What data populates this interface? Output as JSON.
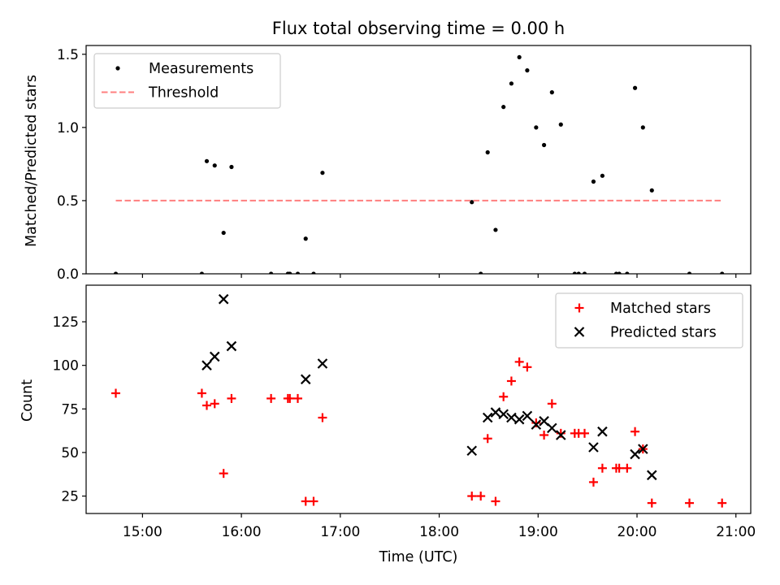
{
  "chart_data": [
    {
      "type": "scatter",
      "title": "Flux total observing time = 0.00 h",
      "xlabel": "",
      "ylabel": "Matched/Predicted stars",
      "xlim": [
        14.43,
        21.15
      ],
      "ylim": [
        0,
        1.56
      ],
      "yticks": [
        0,
        0.5,
        1.0,
        1.5
      ],
      "ytick_labels": [
        "0.0",
        "0.5",
        "1.0",
        "1.5"
      ],
      "grid": false,
      "legend_position": "upper-left",
      "series": [
        {
          "name": "Measurements",
          "marker": "dot",
          "color": "#000000",
          "points": [
            [
              14.73,
              0.0
            ],
            [
              15.6,
              0.0
            ],
            [
              15.65,
              0.77
            ],
            [
              15.73,
              0.74
            ],
            [
              15.82,
              0.28
            ],
            [
              15.9,
              0.73
            ],
            [
              16.3,
              0.0
            ],
            [
              16.47,
              0.0
            ],
            [
              16.49,
              0.0
            ],
            [
              16.57,
              0.0
            ],
            [
              16.65,
              0.24
            ],
            [
              16.73,
              0.0
            ],
            [
              16.82,
              0.69
            ],
            [
              18.33,
              0.49
            ],
            [
              18.42,
              0.0
            ],
            [
              18.49,
              0.83
            ],
            [
              18.57,
              0.3
            ],
            [
              18.65,
              1.14
            ],
            [
              18.73,
              1.3
            ],
            [
              18.81,
              1.48
            ],
            [
              18.89,
              1.39
            ],
            [
              18.98,
              1.0
            ],
            [
              19.06,
              0.88
            ],
            [
              19.14,
              1.24
            ],
            [
              19.23,
              1.02
            ],
            [
              19.37,
              0.0
            ],
            [
              19.41,
              0.0
            ],
            [
              19.47,
              0.0
            ],
            [
              19.56,
              0.63
            ],
            [
              19.65,
              0.67
            ],
            [
              19.79,
              0.0
            ],
            [
              19.82,
              0.0
            ],
            [
              19.9,
              0.0
            ],
            [
              19.98,
              1.27
            ],
            [
              20.06,
              1.0
            ],
            [
              20.15,
              0.57
            ],
            [
              20.53,
              0.0
            ],
            [
              20.86,
              0.0
            ]
          ]
        },
        {
          "name": "Threshold",
          "marker": "dashed-line",
          "color": "#ff7f7f",
          "points": [
            [
              14.73,
              0.5
            ],
            [
              20.86,
              0.5
            ]
          ]
        }
      ]
    },
    {
      "type": "scatter",
      "title": "",
      "xlabel": "Time (UTC)",
      "ylabel": "Count",
      "xlim": [
        14.43,
        21.15
      ],
      "ylim": [
        15,
        146
      ],
      "xticks": [
        15,
        16,
        17,
        18,
        19,
        20,
        21
      ],
      "xtick_labels": [
        "15:00",
        "16:00",
        "17:00",
        "18:00",
        "19:00",
        "20:00",
        "21:00"
      ],
      "yticks": [
        25,
        50,
        75,
        100,
        125
      ],
      "ytick_labels": [
        "25",
        "50",
        "75",
        "100",
        "125"
      ],
      "grid": false,
      "legend_position": "upper-right",
      "series": [
        {
          "name": "Matched stars",
          "marker": "plus",
          "color": "#ff0000",
          "points": [
            [
              14.73,
              84
            ],
            [
              15.6,
              84
            ],
            [
              15.65,
              77
            ],
            [
              15.73,
              78
            ],
            [
              15.82,
              38
            ],
            [
              15.9,
              81
            ],
            [
              16.3,
              81
            ],
            [
              16.47,
              81
            ],
            [
              16.49,
              81
            ],
            [
              16.57,
              81
            ],
            [
              16.65,
              22
            ],
            [
              16.73,
              22
            ],
            [
              16.82,
              70
            ],
            [
              18.33,
              25
            ],
            [
              18.42,
              25
            ],
            [
              18.49,
              58
            ],
            [
              18.57,
              22
            ],
            [
              18.65,
              82
            ],
            [
              18.73,
              91
            ],
            [
              18.81,
              102
            ],
            [
              18.89,
              99
            ],
            [
              18.98,
              67
            ],
            [
              19.06,
              60
            ],
            [
              19.14,
              78
            ],
            [
              19.23,
              61
            ],
            [
              19.37,
              61
            ],
            [
              19.41,
              61
            ],
            [
              19.47,
              61
            ],
            [
              19.56,
              33
            ],
            [
              19.65,
              41
            ],
            [
              19.79,
              41
            ],
            [
              19.82,
              41
            ],
            [
              19.9,
              41
            ],
            [
              19.98,
              62
            ],
            [
              20.06,
              52
            ],
            [
              20.15,
              21
            ],
            [
              20.53,
              21
            ],
            [
              20.86,
              21
            ]
          ]
        },
        {
          "name": "Predicted stars",
          "marker": "x",
          "color": "#000000",
          "points": [
            [
              15.65,
              100
            ],
            [
              15.73,
              105
            ],
            [
              15.82,
              138
            ],
            [
              15.9,
              111
            ],
            [
              16.65,
              92
            ],
            [
              16.82,
              101
            ],
            [
              18.33,
              51
            ],
            [
              18.49,
              70
            ],
            [
              18.57,
              73
            ],
            [
              18.65,
              72
            ],
            [
              18.73,
              70
            ],
            [
              18.81,
              69
            ],
            [
              18.89,
              71
            ],
            [
              18.98,
              66
            ],
            [
              19.06,
              68
            ],
            [
              19.14,
              64
            ],
            [
              19.23,
              60
            ],
            [
              19.56,
              53
            ],
            [
              19.65,
              62
            ],
            [
              19.98,
              49
            ],
            [
              20.06,
              52
            ],
            [
              20.15,
              37
            ]
          ]
        }
      ]
    }
  ]
}
